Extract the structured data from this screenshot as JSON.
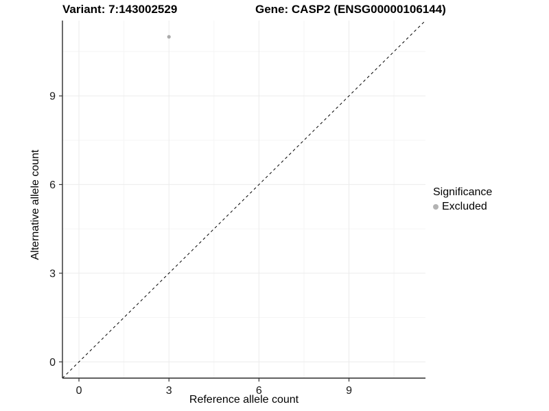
{
  "title": {
    "variant": "Variant: 7:143002529",
    "gene": "Gene: CASP2 (ENSG00000106144)"
  },
  "chart_data": {
    "type": "scatter",
    "title": "Variant: 7:143002529   Gene: CASP2 (ENSG00000106144)",
    "xlabel": "Reference allele count",
    "ylabel": "Alternative allele count",
    "xlim": [
      -0.55,
      11.55
    ],
    "ylim": [
      -0.55,
      11.55
    ],
    "x_major_ticks": [
      0,
      3,
      6,
      9
    ],
    "y_major_ticks": [
      0,
      3,
      6,
      9
    ],
    "x_minor_ticks": [
      1.5,
      4.5,
      7.5,
      10.5
    ],
    "y_minor_ticks": [
      1.5,
      4.5,
      7.5,
      10.5
    ],
    "grid": true,
    "points": [
      {
        "x": 3,
        "y": 11,
        "series": "Excluded"
      }
    ],
    "reference_line": {
      "style": "dashed",
      "slope": 1,
      "intercept": 0
    },
    "legend": {
      "title": "Significance",
      "position": "right",
      "items": [
        {
          "label": "Excluded",
          "color": "#b3b3b3"
        }
      ]
    }
  },
  "colors": {
    "point": "#aaaaaa",
    "legend_key": "#b3b3b3",
    "grid_major": "#ebebeb",
    "grid_minor": "#f5f5f5",
    "axis_line": "#2b2b2b",
    "tick_mark": "#333333",
    "tick_label": "#1a1a1a",
    "dashed_line": "#000000"
  }
}
